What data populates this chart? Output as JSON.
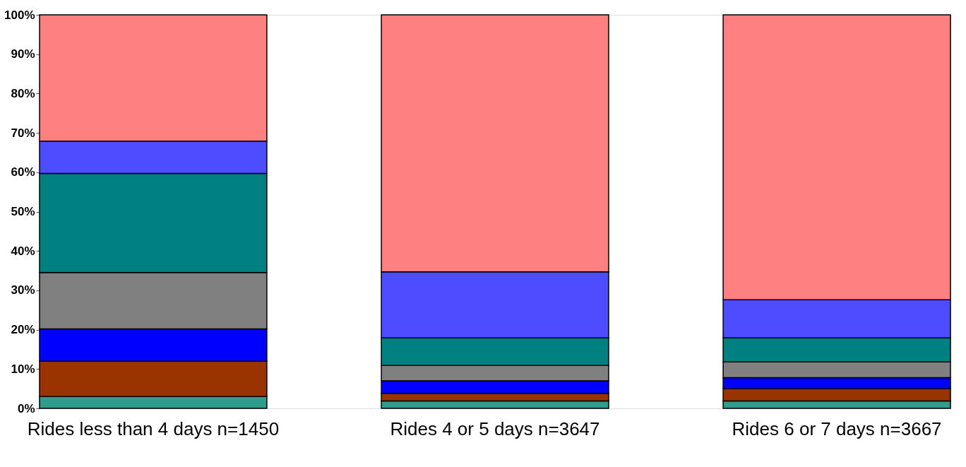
{
  "chart_data": {
    "type": "bar",
    "stacked": true,
    "categories": [
      "Rides less than 4 days n=1450",
      "Rides 4 or 5 days n=3647",
      "Rides 6 or 7 days n=3667"
    ],
    "series": [
      {
        "color": "#2e9e8a",
        "values": [
          3.0,
          1.9,
          1.9
        ]
      },
      {
        "color": "#993300",
        "values": [
          9.0,
          1.9,
          3.1
        ]
      },
      {
        "color": "#0000ff",
        "values": [
          8.2,
          3.2,
          2.8
        ]
      },
      {
        "color": "#808080",
        "values": [
          14.3,
          3.9,
          4.0
        ]
      },
      {
        "color": "#008080",
        "values": [
          25.2,
          7.0,
          6.1
        ]
      },
      {
        "color": "#4d4dff",
        "values": [
          8.2,
          16.8,
          9.7
        ]
      },
      {
        "color": "#ff8080",
        "values": [
          32.1,
          65.3,
          72.4
        ]
      }
    ],
    "ylim": [
      0,
      100
    ],
    "yticks": [
      {
        "value": 0,
        "label": "0%"
      },
      {
        "value": 10,
        "label": "10%"
      },
      {
        "value": 20,
        "label": "20%"
      },
      {
        "value": 30,
        "label": "30%"
      },
      {
        "value": 40,
        "label": "40%"
      },
      {
        "value": 50,
        "label": "50%"
      },
      {
        "value": 60,
        "label": "60%"
      },
      {
        "value": 70,
        "label": "70%"
      },
      {
        "value": 80,
        "label": "80%"
      },
      {
        "value": 90,
        "label": "90%"
      },
      {
        "value": 100,
        "label": "100%"
      }
    ],
    "grid": false,
    "legend": false
  }
}
